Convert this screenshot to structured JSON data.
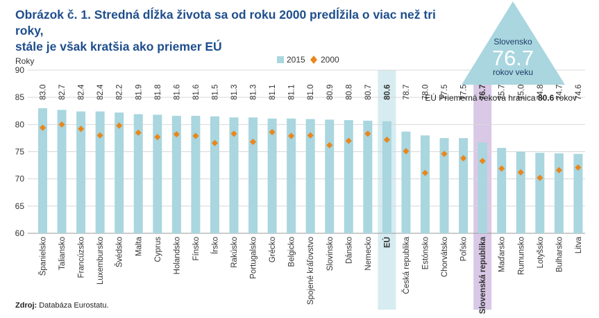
{
  "title_line1": "Obrázok č. 1. Stredná dĺžka života sa od roku 2000 predĺžila o viac než tri roky,",
  "title_line2": "stále je však kratšia ako priemer EÚ",
  "source_label": "Zdroj:",
  "source_text": " Databáza Eurostatu.",
  "callout": {
    "line1": "Slovensko",
    "value": "76.7",
    "line2": "rokov veku"
  },
  "eu_note": {
    "prefix": "EÚ Priemerná veková hranica ",
    "value": "80.6",
    "suffix": " rokov"
  },
  "colors": {
    "bar": "#a9d6df",
    "marker": "#e8871e",
    "title": "#1f4e8c",
    "callout": "#a9d6df",
    "eu_highlight": "#d6ecf1",
    "sk_highlight": "#d9c8e6"
  },
  "chart_data": {
    "type": "bar",
    "ylabel": "Roky",
    "ylim": [
      60,
      90
    ],
    "yticks": [
      60,
      65,
      70,
      75,
      80,
      85,
      90
    ],
    "categories": [
      "Španielsko",
      "Taliansko",
      "Francúzsko",
      "Luxembursko",
      "Švédsko",
      "Malta",
      "Cyprus",
      "Holandsko",
      "Fínsko",
      "Írsko",
      "Rakúsko",
      "Portugalsko",
      "Grécko",
      "Belgicko",
      "Spojené kráľovstvo",
      "Slovinsko",
      "Dánsko",
      "Nemecko",
      "EÚ",
      "Česká republika",
      "Estónsko",
      "Chorvátsko",
      "Poľsko",
      "Slovenská republika",
      "Maďarsko",
      "Rumunsko",
      "Lotyšsko",
      "Bulharsko",
      "Litva"
    ],
    "series": [
      {
        "name": "2015",
        "type": "bar",
        "values": [
          83.0,
          82.7,
          82.4,
          82.4,
          82.2,
          81.9,
          81.8,
          81.6,
          81.6,
          81.5,
          81.3,
          81.3,
          81.1,
          81.1,
          81.0,
          80.9,
          80.8,
          80.7,
          80.6,
          78.7,
          78.0,
          77.5,
          77.5,
          76.7,
          75.7,
          75.0,
          74.8,
          74.7,
          74.6
        ],
        "labels": [
          "83.0",
          "82.7",
          "82.4",
          "82.4",
          "82.2",
          "81.9",
          "81.8",
          "81.6",
          "81.6",
          "81.5",
          "81.3",
          "81.3",
          "81.1",
          "81.1",
          "81.0",
          "80.9",
          "80.8",
          "80.7",
          "80.6",
          "78.7",
          "78.0",
          "77.5",
          "77.5",
          "76.7",
          "75.7",
          "75.0",
          "74.8",
          "74.7",
          "74.6"
        ]
      },
      {
        "name": "2000",
        "type": "scatter",
        "values": [
          79.4,
          80.0,
          79.2,
          78.0,
          79.8,
          78.5,
          77.7,
          78.2,
          77.9,
          76.6,
          78.3,
          76.8,
          78.6,
          77.9,
          78.0,
          76.2,
          77.0,
          78.3,
          77.2,
          75.1,
          71.1,
          74.6,
          73.8,
          73.3,
          71.9,
          71.2,
          70.2,
          71.6,
          72.1
        ]
      }
    ],
    "highlight_categories": [
      "EÚ",
      "Slovenská republika"
    ]
  }
}
